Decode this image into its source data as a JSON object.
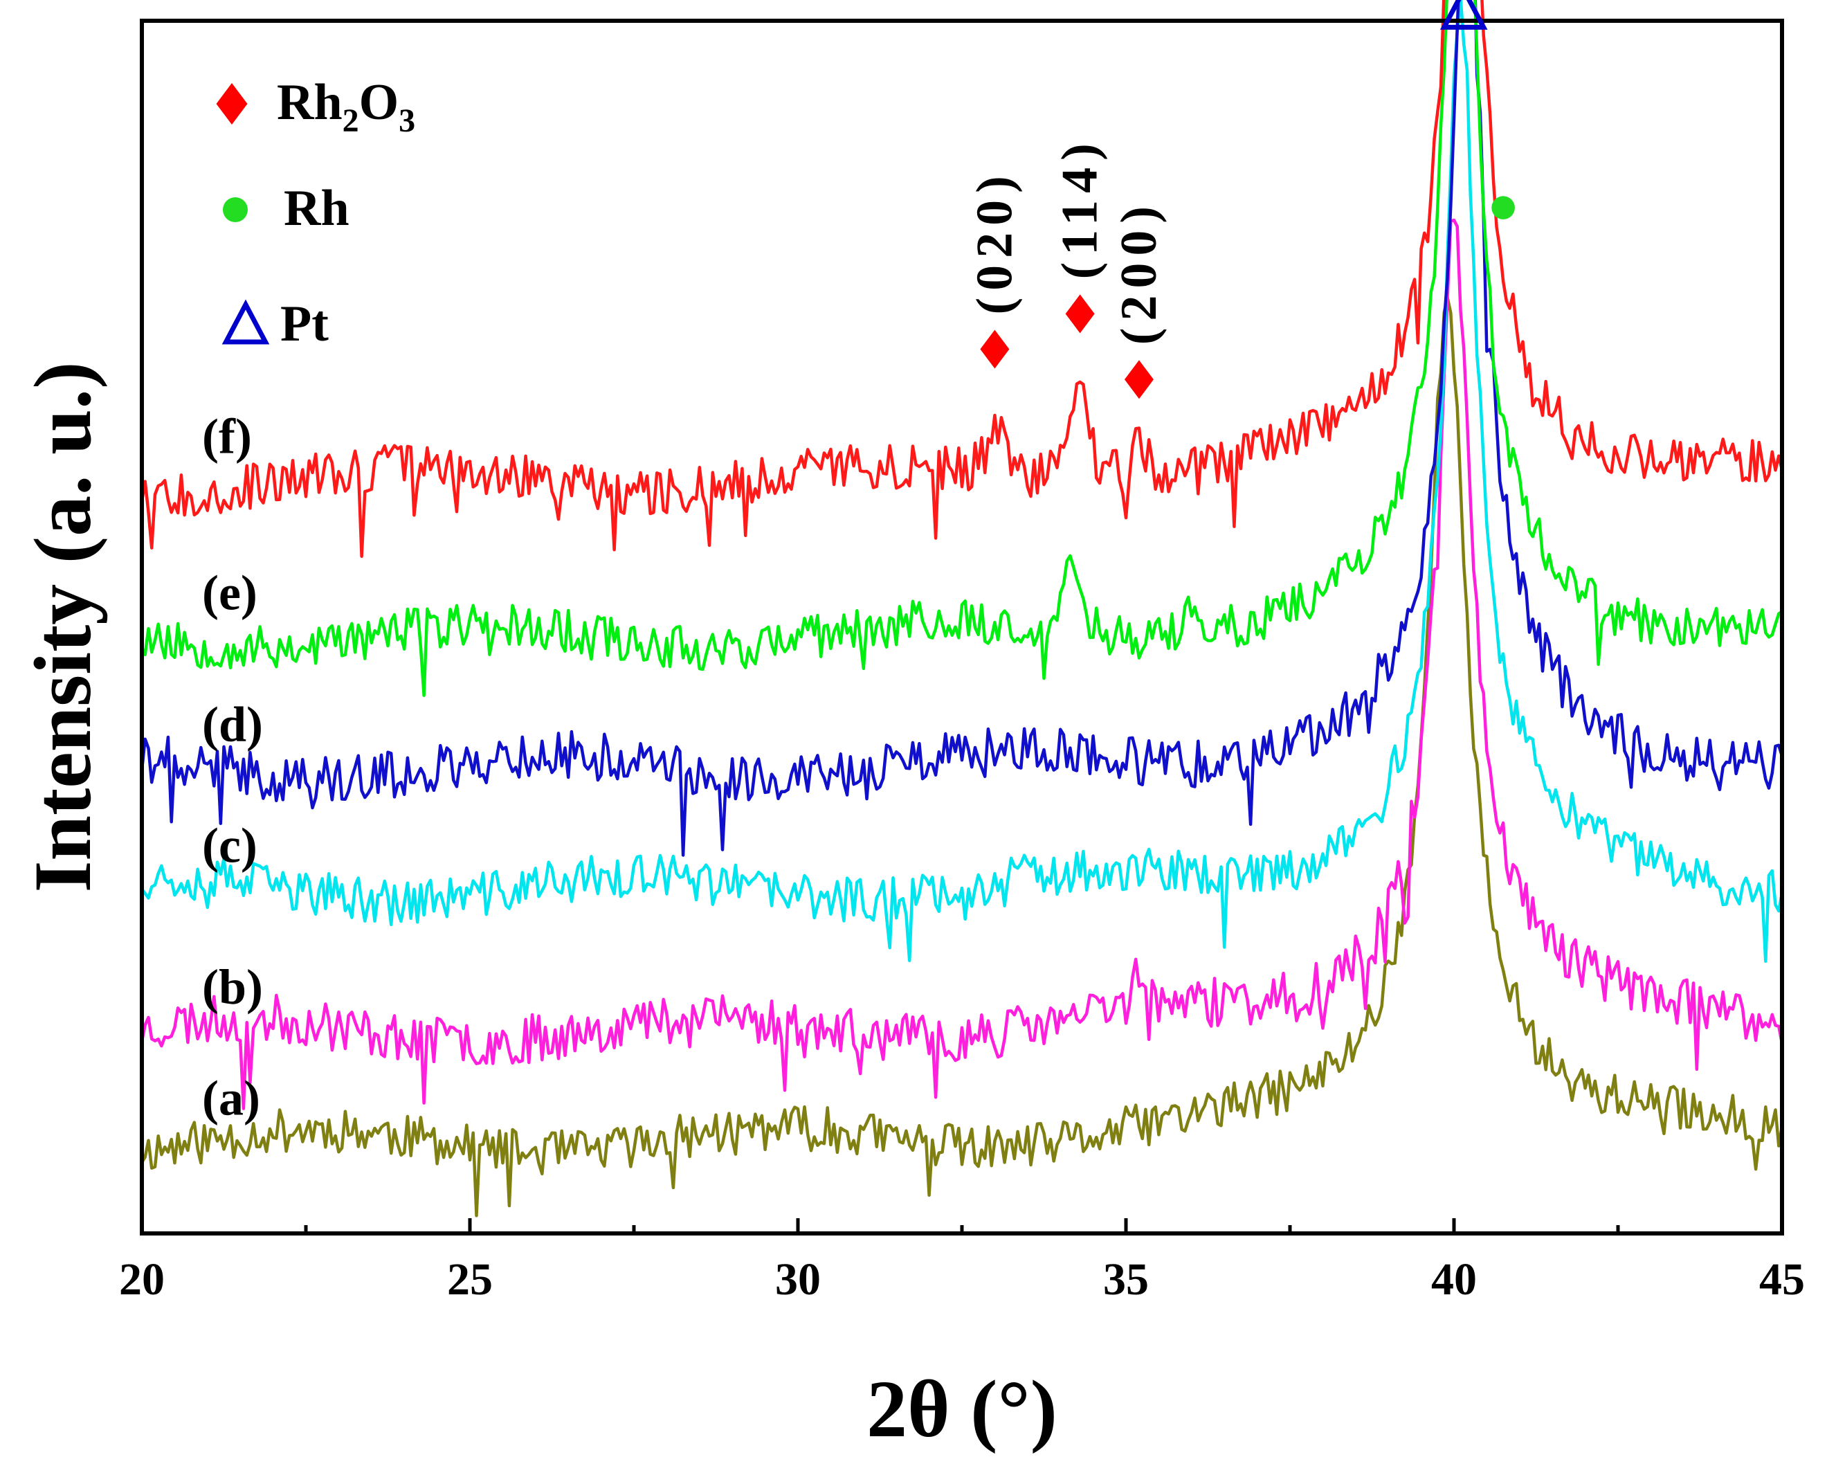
{
  "chart_data": {
    "type": "line",
    "title": "",
    "xlabel": "2θ (°)",
    "ylabel": "Intensity (a. u.)",
    "xlim": [
      20,
      45
    ],
    "ylim": [
      0,
      12
    ],
    "xticks": [
      20,
      25,
      30,
      35,
      40,
      45
    ],
    "xtick_labels": [
      "20",
      "25",
      "30",
      "35",
      "40",
      "45"
    ],
    "minor_xticks": [
      22.5,
      27.5,
      32.5,
      37.5,
      42.5
    ],
    "series": [
      {
        "name": "(a)",
        "color": "#7f7f12",
        "baseline": 0.9,
        "noise": 0.22,
        "seed": 11,
        "peaks": [
          {
            "x": 39.9,
            "h": 7.2,
            "w": 0.32
          },
          {
            "x": 39.9,
            "h": 1.4,
            "w": 1.3
          }
        ]
      },
      {
        "name": "(b)",
        "color": "#ff1fdd",
        "baseline": 2.0,
        "noise": 0.24,
        "seed": 23,
        "peaks": [
          {
            "x": 35.2,
            "h": 0.45,
            "w": 0.1
          },
          {
            "x": 40.0,
            "h": 6.8,
            "w": 0.3
          },
          {
            "x": 40.0,
            "h": 1.3,
            "w": 1.3
          }
        ]
      },
      {
        "name": "(c)",
        "color": "#00e5ee",
        "baseline": 3.4,
        "noise": 0.22,
        "seed": 37,
        "peaks": [
          {
            "x": 40.1,
            "h": 7.4,
            "w": 0.28
          },
          {
            "x": 40.1,
            "h": 1.3,
            "w": 1.2
          }
        ]
      },
      {
        "name": "(d)",
        "color": "#1010cc",
        "baseline": 4.6,
        "noise": 0.24,
        "seed": 41,
        "peaks": [
          {
            "x": 40.2,
            "h": 7.6,
            "w": 0.28
          },
          {
            "x": 40.2,
            "h": 1.3,
            "w": 1.2
          }
        ]
      },
      {
        "name": "(e)",
        "color": "#00ee10",
        "baseline": 5.9,
        "noise": 0.22,
        "seed": 53,
        "peaks": [
          {
            "x": 34.2,
            "h": 0.75,
            "w": 0.14
          },
          {
            "x": 36.0,
            "h": 0.3,
            "w": 0.08
          },
          {
            "x": 40.1,
            "h": 8.2,
            "w": 0.27
          },
          {
            "x": 40.1,
            "h": 1.2,
            "w": 1.2
          }
        ]
      },
      {
        "name": "(f)",
        "color": "#ff1a1a",
        "baseline": 7.45,
        "noise": 0.23,
        "seed": 67,
        "peaks": [
          {
            "x": 33.0,
            "h": 0.65,
            "w": 0.12
          },
          {
            "x": 34.3,
            "h": 0.95,
            "w": 0.15
          },
          {
            "x": 35.2,
            "h": 0.55,
            "w": 0.1
          },
          {
            "x": 40.15,
            "h": 7.9,
            "w": 0.27
          },
          {
            "x": 40.15,
            "h": 1.2,
            "w": 1.2
          }
        ]
      }
    ],
    "legend": [
      {
        "label": "Rh",
        "sub": "2",
        "label2": "O",
        "sub2": "3",
        "marker": "diamond",
        "color": "#ff0000"
      },
      {
        "label": "Rh",
        "marker": "circle",
        "color": "#22dd22"
      },
      {
        "label": "Pt",
        "marker": "triangle",
        "color": "#0000cc"
      }
    ],
    "annotations": [
      {
        "text": "(020)",
        "x": 33.0,
        "marker": "diamond",
        "color": "#ff0000",
        "marker_y": 8.75
      },
      {
        "text": "(114)",
        "x": 34.3,
        "marker": "diamond",
        "color": "#ff0000",
        "marker_y": 9.1
      },
      {
        "text": "(200)",
        "x": 35.2,
        "marker": "diamond",
        "color": "#ff0000",
        "marker_y": 8.45
      },
      {
        "text": "",
        "x": 40.75,
        "marker": "circle",
        "color": "#22dd22",
        "marker_y": 10.15
      },
      {
        "text": "",
        "x": 40.15,
        "marker": "triangle",
        "color": "#0000cc",
        "marker_y": 12.1
      }
    ]
  }
}
